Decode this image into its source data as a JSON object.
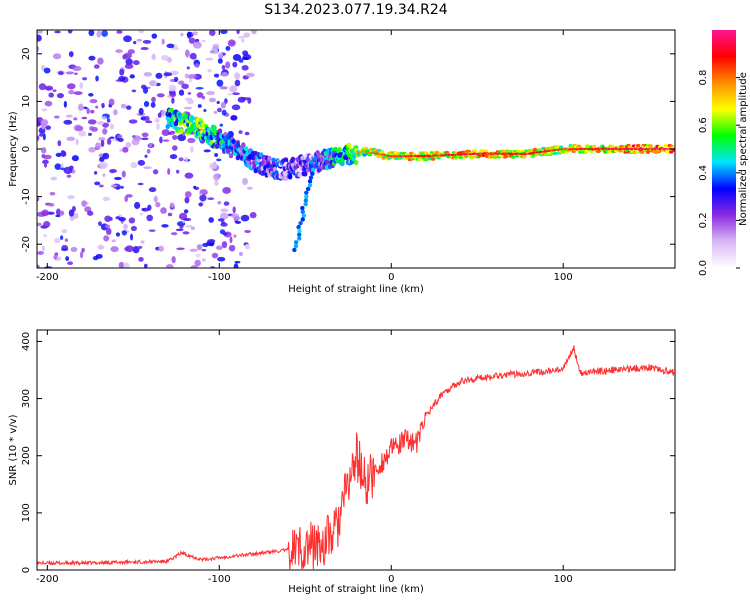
{
  "title": "S134.2023.077.19.34.R24",
  "spectrogram": {
    "type": "heatmap",
    "xlabel": "Height of straight line (km)",
    "ylabel": "Frequency (Hz)",
    "xlim": [
      -206,
      165
    ],
    "ylim": [
      -25,
      25
    ],
    "xticks": [
      -200,
      -100,
      0,
      100
    ],
    "yticks": [
      -20,
      -10,
      0,
      10,
      20
    ],
    "colorbar": {
      "label": "Normalized spectral amplitude",
      "ticks": [
        0.0,
        0.2,
        0.4,
        0.6,
        0.8
      ],
      "range": [
        0,
        1
      ],
      "colormap": [
        "#ffffff",
        "#d9b8f5",
        "#8a2be2",
        "#0000ff",
        "#00e5ff",
        "#00ff00",
        "#ffff00",
        "#ff8c00",
        "#ff0000",
        "#ff1493"
      ]
    },
    "ridge": [
      {
        "x": -130,
        "f": 6.5,
        "a": 0.6
      },
      {
        "x": -110,
        "f": 4.0,
        "a": 0.7
      },
      {
        "x": -95,
        "f": 1.0,
        "a": 0.5
      },
      {
        "x": -80,
        "f": -2.5,
        "a": 0.45
      },
      {
        "x": -65,
        "f": -4.5,
        "a": 0.4
      },
      {
        "x": -45,
        "f": -3.0,
        "a": 0.4
      },
      {
        "x": -30,
        "f": -1.5,
        "a": 0.6
      },
      {
        "x": -15,
        "f": -0.5,
        "a": 0.75
      },
      {
        "x": 0,
        "f": -1.5,
        "a": 0.8
      },
      {
        "x": 20,
        "f": -1.5,
        "a": 0.85
      },
      {
        "x": 50,
        "f": -1.0,
        "a": 0.9
      },
      {
        "x": 80,
        "f": -1.0,
        "a": 0.85
      },
      {
        "x": 100,
        "f": 0.0,
        "a": 0.8
      },
      {
        "x": 130,
        "f": 0.0,
        "a": 0.9
      },
      {
        "x": 165,
        "f": 0.0,
        "a": 0.95
      }
    ]
  },
  "snr_plot": {
    "type": "line",
    "xlabel": "Height of straight line (km)",
    "ylabel": "SNR (10 * v/v)",
    "xlim": [
      -206,
      165
    ],
    "ylim": [
      0,
      420
    ],
    "xticks": [
      -200,
      -100,
      0,
      100
    ],
    "yticks": [
      0,
      100,
      200,
      300,
      400
    ],
    "line_color": "#ff3030",
    "series": [
      {
        "x": -206,
        "y": 12
      },
      {
        "x": -180,
        "y": 12
      },
      {
        "x": -150,
        "y": 14
      },
      {
        "x": -130,
        "y": 15
      },
      {
        "x": -122,
        "y": 30
      },
      {
        "x": -110,
        "y": 18
      },
      {
        "x": -90,
        "y": 25
      },
      {
        "x": -75,
        "y": 30
      },
      {
        "x": -60,
        "y": 35
      },
      {
        "x": -50,
        "y": 40
      },
      {
        "x": -40,
        "y": 45
      },
      {
        "x": -32,
        "y": 70
      },
      {
        "x": -25,
        "y": 150
      },
      {
        "x": -20,
        "y": 200
      },
      {
        "x": -15,
        "y": 150
      },
      {
        "x": -10,
        "y": 170
      },
      {
        "x": 0,
        "y": 210
      },
      {
        "x": 10,
        "y": 230
      },
      {
        "x": 15,
        "y": 220
      },
      {
        "x": 20,
        "y": 270
      },
      {
        "x": 30,
        "y": 310
      },
      {
        "x": 40,
        "y": 330
      },
      {
        "x": 60,
        "y": 340
      },
      {
        "x": 80,
        "y": 345
      },
      {
        "x": 100,
        "y": 350
      },
      {
        "x": 106,
        "y": 390
      },
      {
        "x": 110,
        "y": 345
      },
      {
        "x": 130,
        "y": 350
      },
      {
        "x": 150,
        "y": 355
      },
      {
        "x": 165,
        "y": 345
      }
    ]
  }
}
